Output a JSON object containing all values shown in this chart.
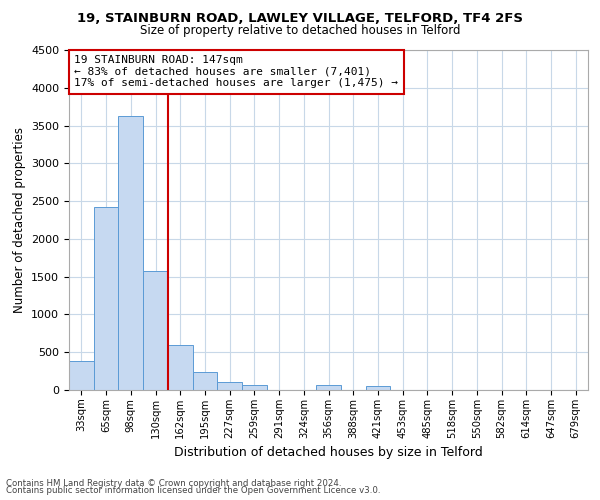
{
  "title": "19, STAINBURN ROAD, LAWLEY VILLAGE, TELFORD, TF4 2FS",
  "subtitle": "Size of property relative to detached houses in Telford",
  "xlabel": "Distribution of detached houses by size in Telford",
  "ylabel": "Number of detached properties",
  "categories": [
    "33sqm",
    "65sqm",
    "98sqm",
    "130sqm",
    "162sqm",
    "195sqm",
    "227sqm",
    "259sqm",
    "291sqm",
    "324sqm",
    "356sqm",
    "388sqm",
    "421sqm",
    "453sqm",
    "485sqm",
    "518sqm",
    "550sqm",
    "582sqm",
    "614sqm",
    "647sqm",
    "679sqm"
  ],
  "values": [
    390,
    2420,
    3620,
    1580,
    600,
    240,
    100,
    60,
    0,
    0,
    60,
    0,
    50,
    0,
    0,
    0,
    0,
    0,
    0,
    0,
    0
  ],
  "bar_color": "#c6d9f1",
  "bar_edge_color": "#5b9bd5",
  "vline_color": "#cc0000",
  "annotation_line1": "19 STAINBURN ROAD: 147sqm",
  "annotation_line2": "← 83% of detached houses are smaller (7,401)",
  "annotation_line3": "17% of semi-detached houses are larger (1,475) →",
  "annotation_box_edge": "#cc0000",
  "ylim": [
    0,
    4500
  ],
  "yticks": [
    0,
    500,
    1000,
    1500,
    2000,
    2500,
    3000,
    3500,
    4000,
    4500
  ],
  "footer_line1": "Contains HM Land Registry data © Crown copyright and database right 2024.",
  "footer_line2": "Contains public sector information licensed under the Open Government Licence v3.0.",
  "bg_color": "#ffffff",
  "grid_color": "#c8d8e8"
}
